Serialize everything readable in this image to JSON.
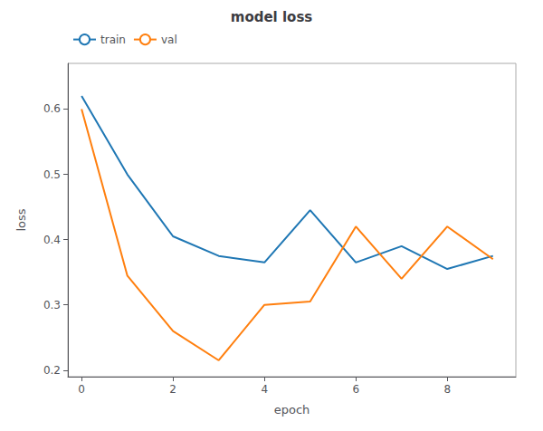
{
  "chart_data": {
    "type": "line",
    "title": "model loss",
    "xlabel": "epoch",
    "ylabel": "loss",
    "x": [
      0,
      1,
      2,
      3,
      4,
      5,
      6,
      7,
      8,
      9
    ],
    "series": [
      {
        "name": "train",
        "color": "#1f77b4",
        "values": [
          0.62,
          0.5,
          0.405,
          0.375,
          0.365,
          0.445,
          0.365,
          0.39,
          0.355,
          0.375
        ]
      },
      {
        "name": "val",
        "color": "#ff7f0e",
        "values": [
          0.6,
          0.345,
          0.26,
          0.215,
          0.3,
          0.305,
          0.42,
          0.34,
          0.42,
          0.37
        ]
      }
    ],
    "xlim": [
      -0.3,
      9.5
    ],
    "xticks": [
      0,
      2,
      4,
      6,
      8
    ],
    "ylim": [
      0.19,
      0.67
    ],
    "yticks": [
      0.2,
      0.3,
      0.4,
      0.5,
      0.6
    ],
    "legend": "upper left",
    "grid": false
  }
}
